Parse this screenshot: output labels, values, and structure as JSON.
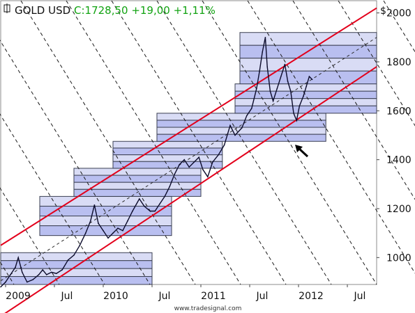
{
  "header": {
    "symbol": "GOLD USD",
    "quote": "C:1728,50 +19,00 +1,11%",
    "currency": "$"
  },
  "watermark": "www.tradesignal.com",
  "colors": {
    "channel": "#e3001b",
    "band_light": "#d9dcf5",
    "band_dark": "#b9bff0",
    "price": "#0b0b2b",
    "quote_text": "#12a312"
  },
  "chart_data": {
    "type": "line",
    "title": "GOLD USD",
    "ylim": [
      890,
      2050
    ],
    "xlim": [
      2008.95,
      2012.8
    ],
    "yticks": [
      1000,
      1200,
      1400,
      1600,
      1800,
      2000
    ],
    "ytick_labels": [
      "1000",
      "1200",
      "1400",
      "1600",
      "1800",
      "2000"
    ],
    "xticks": [
      {
        "x": 2009.0,
        "label": "2009"
      },
      {
        "x": 2009.5,
        "label": "Jul"
      },
      {
        "x": 2010.0,
        "label": "2010"
      },
      {
        "x": 2010.5,
        "label": "Jul"
      },
      {
        "x": 2011.0,
        "label": "2011"
      },
      {
        "x": 2011.5,
        "label": "Jul"
      },
      {
        "x": 2012.0,
        "label": "2012"
      },
      {
        "x": 2012.5,
        "label": "Jul"
      }
    ],
    "grid": false,
    "series": [
      {
        "points": [
          [
            2008.92,
            880
          ],
          [
            2009.0,
            900
          ],
          [
            2009.05,
            930
          ],
          [
            2009.1,
            960
          ],
          [
            2009.13,
            1000
          ],
          [
            2009.17,
            940
          ],
          [
            2009.22,
            900
          ],
          [
            2009.28,
            910
          ],
          [
            2009.34,
            930
          ],
          [
            2009.38,
            950
          ],
          [
            2009.42,
            930
          ],
          [
            2009.47,
            940
          ],
          [
            2009.52,
            935
          ],
          [
            2009.58,
            950
          ],
          [
            2009.64,
            990
          ],
          [
            2009.7,
            1010
          ],
          [
            2009.76,
            1050
          ],
          [
            2009.82,
            1100
          ],
          [
            2009.87,
            1150
          ],
          [
            2009.91,
            1215
          ],
          [
            2009.95,
            1140
          ],
          [
            2010.0,
            1110
          ],
          [
            2010.05,
            1080
          ],
          [
            2010.1,
            1100
          ],
          [
            2010.15,
            1120
          ],
          [
            2010.2,
            1110
          ],
          [
            2010.25,
            1150
          ],
          [
            2010.3,
            1190
          ],
          [
            2010.37,
            1240
          ],
          [
            2010.42,
            1210
          ],
          [
            2010.48,
            1190
          ],
          [
            2010.53,
            1190
          ],
          [
            2010.58,
            1220
          ],
          [
            2010.63,
            1250
          ],
          [
            2010.68,
            1290
          ],
          [
            2010.73,
            1340
          ],
          [
            2010.78,
            1380
          ],
          [
            2010.83,
            1400
          ],
          [
            2010.88,
            1370
          ],
          [
            2010.93,
            1390
          ],
          [
            2010.98,
            1410
          ],
          [
            2011.02,
            1360
          ],
          [
            2011.07,
            1330
          ],
          [
            2011.12,
            1390
          ],
          [
            2011.18,
            1420
          ],
          [
            2011.24,
            1460
          ],
          [
            2011.3,
            1540
          ],
          [
            2011.35,
            1500
          ],
          [
            2011.42,
            1530
          ],
          [
            2011.47,
            1580
          ],
          [
            2011.52,
            1610
          ],
          [
            2011.57,
            1690
          ],
          [
            2011.6,
            1760
          ],
          [
            2011.63,
            1840
          ],
          [
            2011.66,
            1900
          ],
          [
            2011.68,
            1780
          ],
          [
            2011.71,
            1680
          ],
          [
            2011.74,
            1640
          ],
          [
            2011.78,
            1690
          ],
          [
            2011.82,
            1740
          ],
          [
            2011.86,
            1790
          ],
          [
            2011.89,
            1720
          ],
          [
            2011.92,
            1680
          ],
          [
            2011.95,
            1590
          ],
          [
            2011.98,
            1560
          ],
          [
            2012.01,
            1620
          ],
          [
            2012.05,
            1660
          ],
          [
            2012.08,
            1700
          ],
          [
            2012.11,
            1740
          ],
          [
            2012.14,
            1728
          ]
        ]
      }
    ],
    "channel_lines": [
      {
        "from": [
          2008.95,
          1050
        ],
        "to": [
          2012.8,
          2020
        ]
      },
      {
        "from": [
          2008.95,
          760
        ],
        "to": [
          2012.8,
          1780
        ]
      }
    ],
    "mid_line": {
      "from": [
        2008.95,
        905
      ],
      "to": [
        2012.8,
        1900
      ]
    },
    "bands": [
      {
        "x0": 2008.95,
        "x1": 2010.5,
        "y0": 890,
        "y1": 1020
      },
      {
        "x0": 2009.35,
        "x1": 2010.7,
        "y0": 1090,
        "y1": 1250
      },
      {
        "x0": 2009.7,
        "x1": 2011.0,
        "y0": 1250,
        "y1": 1365
      },
      {
        "x0": 2010.1,
        "x1": 2011.22,
        "y0": 1365,
        "y1": 1475
      },
      {
        "x0": 2010.55,
        "x1": 2012.28,
        "y0": 1475,
        "y1": 1590
      },
      {
        "x0": 2011.35,
        "x1": 2012.8,
        "y0": 1590,
        "y1": 1710
      },
      {
        "x0": 2011.4,
        "x1": 2012.8,
        "y0": 1710,
        "y1": 1920
      }
    ]
  }
}
